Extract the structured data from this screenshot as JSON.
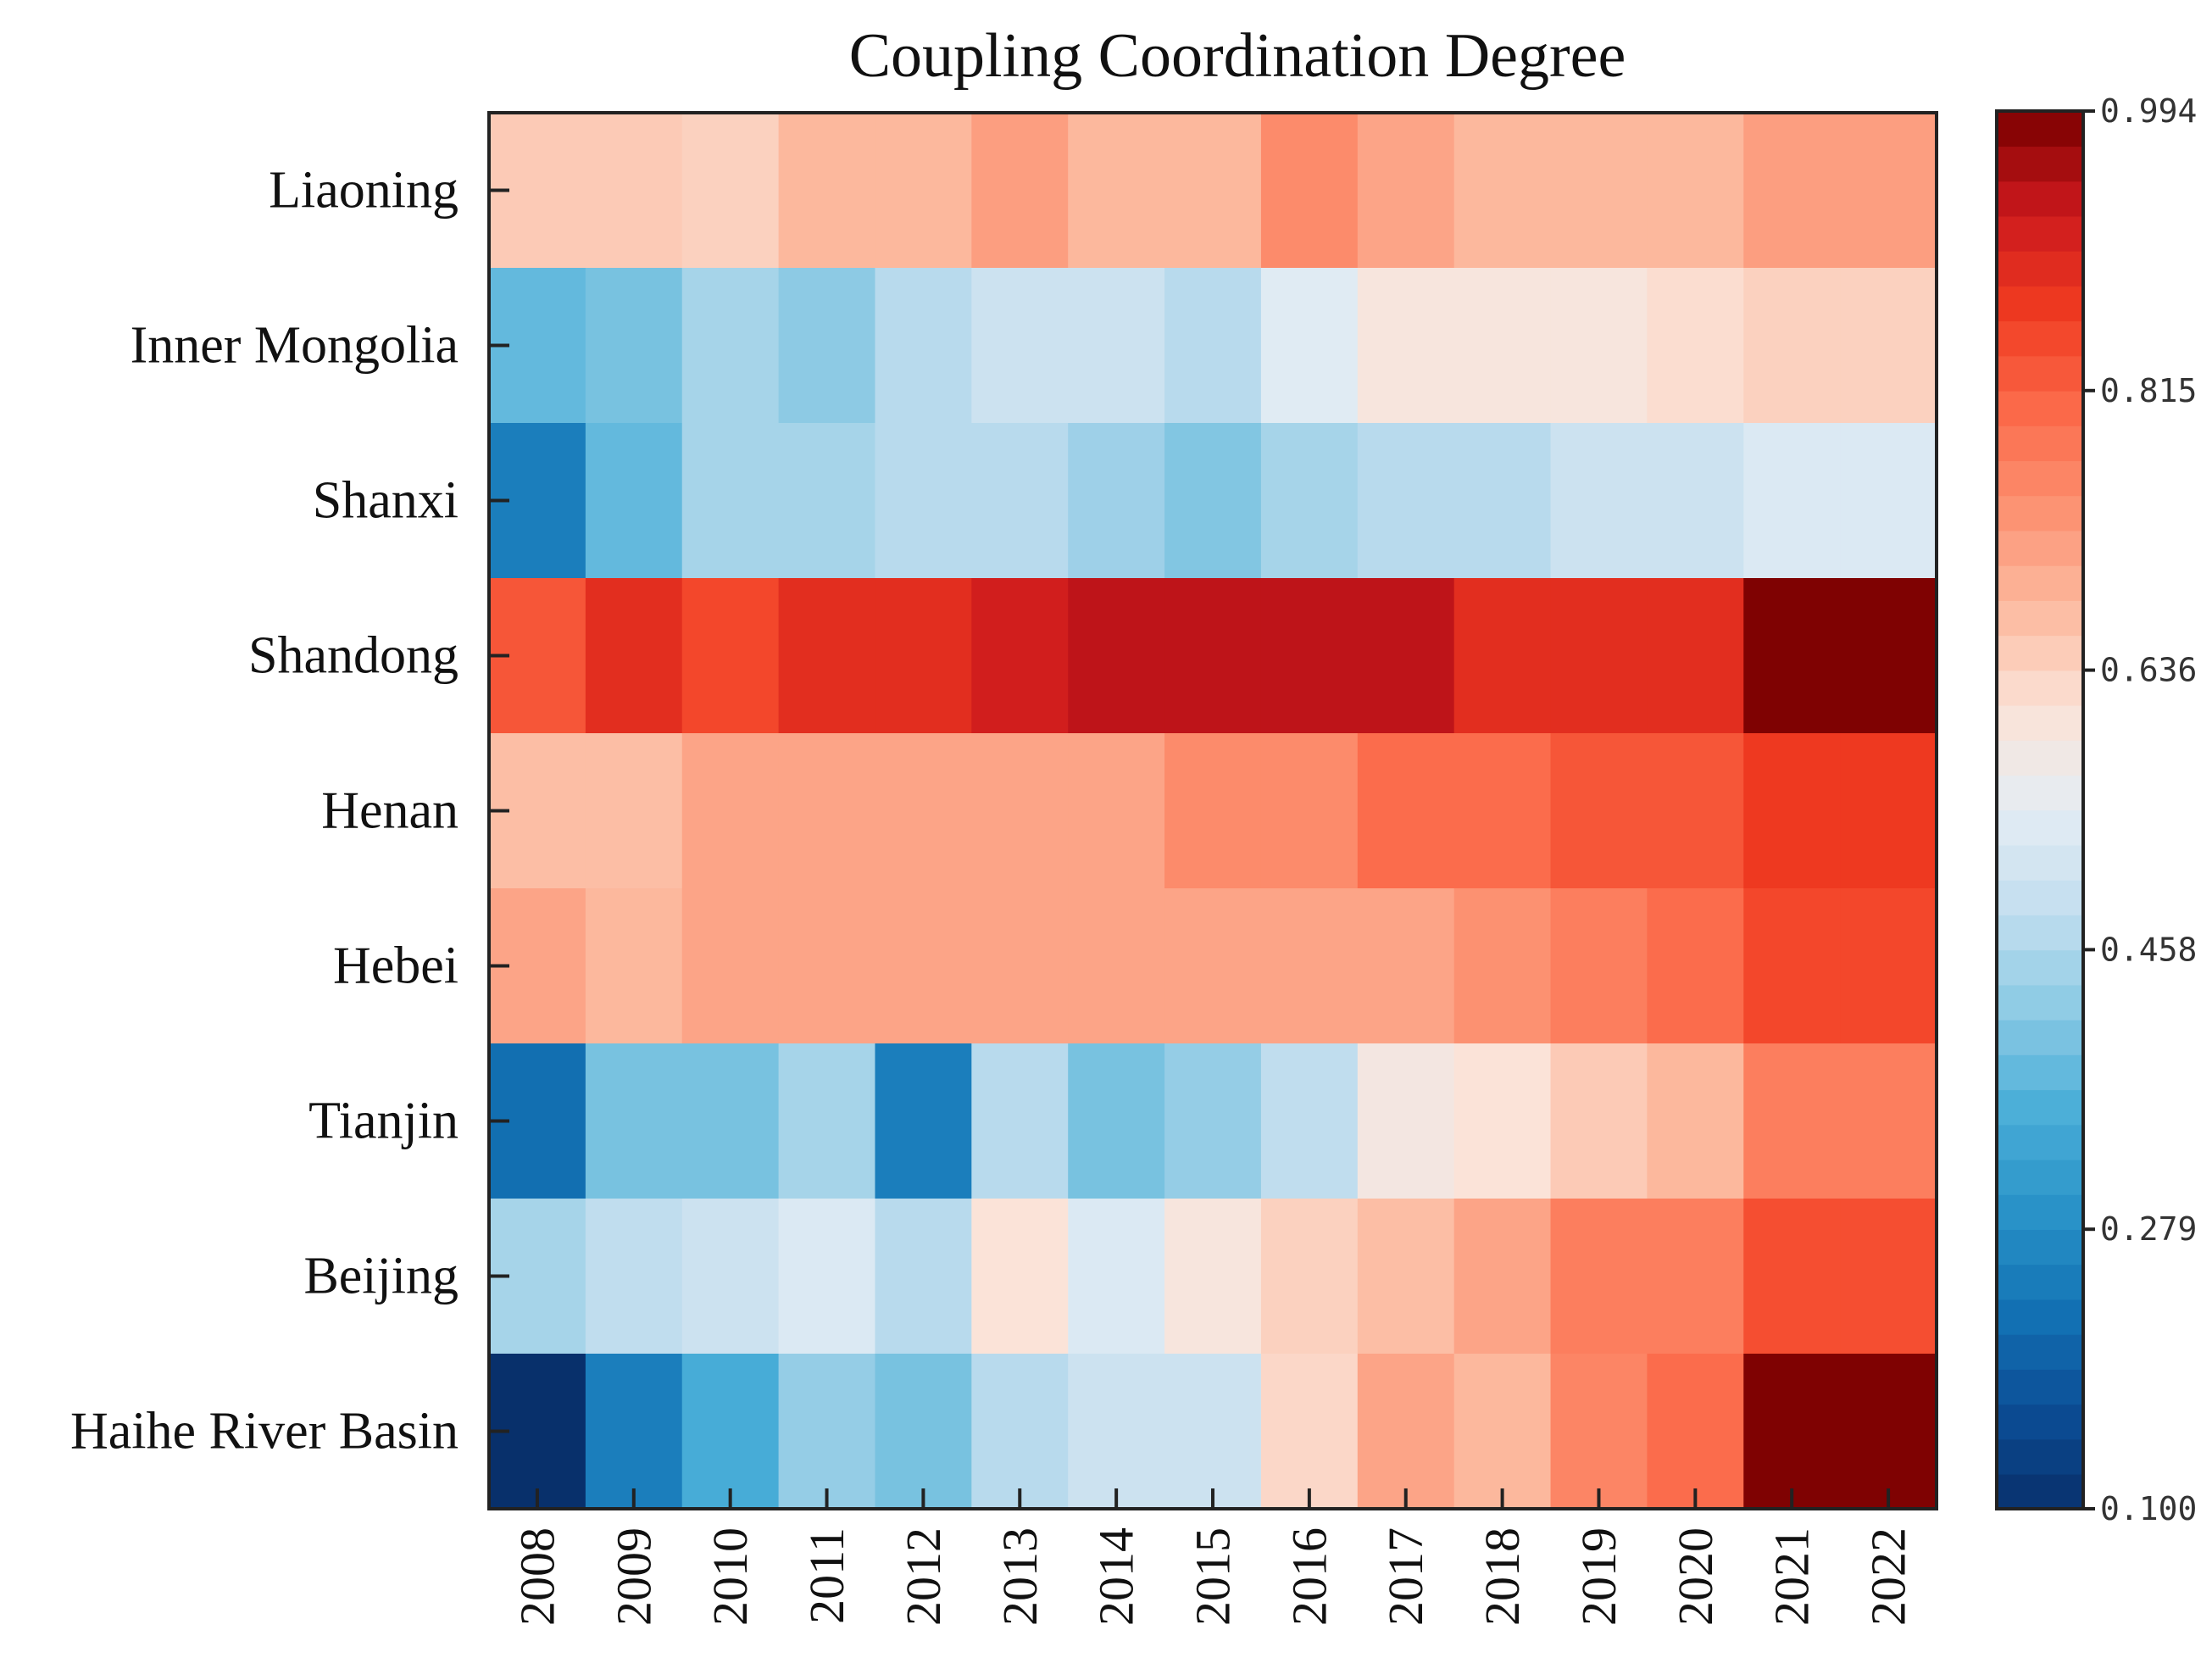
{
  "chart_data": {
    "type": "heatmap",
    "title": "Coupling Coordination Degree",
    "xlabel": "",
    "ylabel": "",
    "x_categories": [
      "2008",
      "2009",
      "2010",
      "2011",
      "2012",
      "2013",
      "2014",
      "2015",
      "2016",
      "2017",
      "2018",
      "2019",
      "2020",
      "2021",
      "2022"
    ],
    "y_categories": [
      "Liaoning",
      "Inner Mongolia",
      "Shanxi",
      "Shandong",
      "Henan",
      "Hebei",
      "Tianjin",
      "Beijing",
      "Haihe River Basin"
    ],
    "values": [
      [
        0.65,
        0.65,
        0.64,
        0.68,
        0.68,
        0.72,
        0.68,
        0.68,
        0.75,
        0.71,
        0.68,
        0.68,
        0.68,
        0.72,
        0.72
      ],
      [
        0.38,
        0.4,
        0.45,
        0.42,
        0.47,
        0.5,
        0.5,
        0.47,
        0.54,
        0.6,
        0.6,
        0.6,
        0.62,
        0.64,
        0.64
      ],
      [
        0.25,
        0.38,
        0.45,
        0.45,
        0.47,
        0.47,
        0.44,
        0.41,
        0.45,
        0.47,
        0.47,
        0.5,
        0.5,
        0.53,
        0.53
      ],
      [
        0.83,
        0.89,
        0.85,
        0.89,
        0.89,
        0.92,
        0.94,
        0.94,
        0.94,
        0.94,
        0.89,
        0.89,
        0.89,
        0.99,
        0.99
      ],
      [
        0.67,
        0.67,
        0.71,
        0.71,
        0.71,
        0.71,
        0.71,
        0.75,
        0.75,
        0.8,
        0.8,
        0.83,
        0.83,
        0.87,
        0.87
      ],
      [
        0.71,
        0.68,
        0.71,
        0.71,
        0.71,
        0.71,
        0.71,
        0.71,
        0.71,
        0.71,
        0.74,
        0.77,
        0.8,
        0.85,
        0.85
      ],
      [
        0.22,
        0.4,
        0.4,
        0.45,
        0.25,
        0.47,
        0.4,
        0.43,
        0.48,
        0.59,
        0.61,
        0.65,
        0.68,
        0.77,
        0.77
      ],
      [
        0.45,
        0.48,
        0.5,
        0.53,
        0.47,
        0.61,
        0.53,
        0.6,
        0.64,
        0.67,
        0.71,
        0.77,
        0.77,
        0.84,
        0.84
      ],
      [
        0.1,
        0.25,
        0.35,
        0.43,
        0.4,
        0.47,
        0.5,
        0.5,
        0.63,
        0.71,
        0.68,
        0.76,
        0.8,
        0.99,
        0.99
      ]
    ],
    "colorbar": {
      "min": 0.1,
      "max": 0.994,
      "tick_labels": [
        "0.100",
        "0.279",
        "0.458",
        "0.636",
        "0.815",
        "0.994"
      ],
      "colors": [
        "#08306b",
        "#0b4e96",
        "#1373b5",
        "#2a93c8",
        "#4aaed8",
        "#8ccae4",
        "#c3deef",
        "#e4edf4",
        "#fbe3d8",
        "#fcbba1",
        "#fc9272",
        "#fb6a4a",
        "#f03b20",
        "#cb181d",
        "#7a0000"
      ]
    }
  }
}
